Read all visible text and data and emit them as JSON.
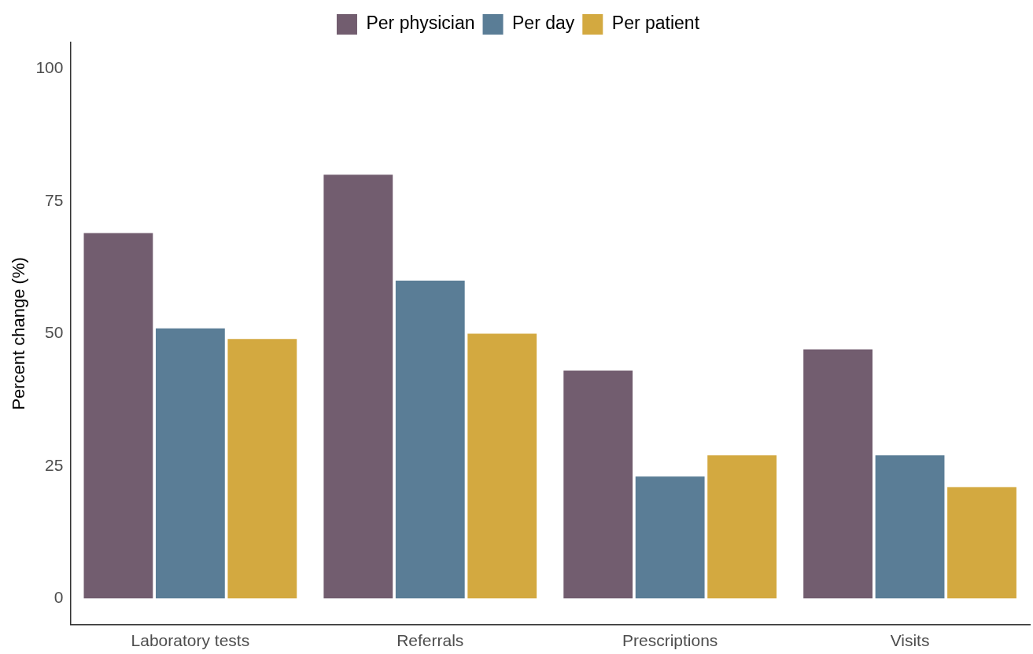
{
  "chart_data": {
    "type": "bar",
    "ylabel": "Percent change (%)",
    "categories": [
      "Laboratory tests",
      "Referrals",
      "Prescriptions",
      "Visits"
    ],
    "series": [
      {
        "name": "Per physician",
        "color": "#725d6f",
        "values": [
          69,
          80,
          43,
          47
        ]
      },
      {
        "name": "Per day",
        "color": "#5a7d96",
        "values": [
          51,
          60,
          23,
          27
        ]
      },
      {
        "name": "Per patient",
        "color": "#d3a940",
        "values": [
          49,
          50,
          27,
          21
        ]
      }
    ],
    "ylim": [
      -5,
      105
    ],
    "yticks": [
      0,
      25,
      50,
      75,
      100
    ],
    "grid": false,
    "legend": "top"
  }
}
